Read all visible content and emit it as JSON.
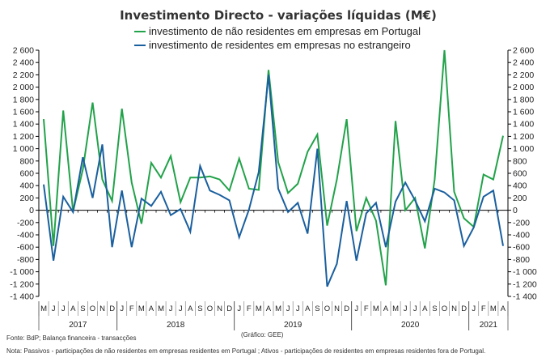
{
  "chart_data": {
    "type": "line",
    "title": "Investimento Directo - variações líquidas (M€)",
    "categories": [
      "M",
      "J",
      "J",
      "A",
      "S",
      "O",
      "N",
      "D",
      "J",
      "F",
      "M",
      "A",
      "M",
      "J",
      "J",
      "A",
      "S",
      "O",
      "N",
      "D",
      "J",
      "F",
      "M",
      "A",
      "M",
      "J",
      "J",
      "A",
      "S",
      "O",
      "N",
      "D",
      "J",
      "F",
      "M",
      "A",
      "M",
      "J",
      "J",
      "A",
      "S",
      "O",
      "N",
      "D",
      "J",
      "F",
      "M",
      "A"
    ],
    "years": [
      {
        "label": "2017",
        "start": 0,
        "end": 7
      },
      {
        "label": "2018",
        "start": 8,
        "end": 19
      },
      {
        "label": "2019",
        "start": 20,
        "end": 31
      },
      {
        "label": "2020",
        "start": 32,
        "end": 43
      },
      {
        "label": "2021",
        "start": 44,
        "end": 47
      }
    ],
    "series": [
      {
        "name": "investimento de não residentes em empresas em Portugal",
        "color": "#22a24a",
        "values": [
          1480,
          -580,
          1620,
          -20,
          660,
          1750,
          500,
          150,
          1650,
          450,
          -220,
          770,
          530,
          880,
          130,
          530,
          530,
          550,
          500,
          320,
          840,
          350,
          330,
          2280,
          780,
          280,
          430,
          950,
          1230,
          -250,
          500,
          1480,
          -340,
          200,
          -170,
          -1220,
          1450,
          0,
          200,
          -620,
          500,
          2600,
          300,
          -130,
          -270,
          580,
          500,
          1210
        ]
      },
      {
        "name": "investimento de residentes em empresas no estrangeiro",
        "color": "#1a5f9e",
        "values": [
          420,
          -820,
          220,
          -30,
          860,
          200,
          1070,
          -600,
          320,
          -600,
          190,
          70,
          300,
          -80,
          20,
          -350,
          720,
          320,
          250,
          160,
          -440,
          10,
          620,
          2200,
          350,
          -30,
          120,
          -380,
          1000,
          -1240,
          -870,
          150,
          -820,
          -50,
          120,
          -600,
          140,
          450,
          160,
          -180,
          350,
          290,
          160,
          -580,
          -280,
          220,
          320,
          -580
        ]
      }
    ],
    "y_axis": {
      "min": -1400,
      "max": 2600,
      "step": 200
    },
    "y_tick_labels": [
      "2 600",
      "2 400",
      "2 200",
      "2 000",
      "1 800",
      "1 600",
      "1 400",
      "1 200",
      "1 000",
      "800",
      "600",
      "400",
      "200",
      "0",
      "-200",
      "-400",
      "-600",
      "-800",
      "-1 000",
      "-1 200",
      "-1 400"
    ],
    "source": "Fonte: BdP; Balança financeira - transacções",
    "credit": "(Gráfico: GEE)",
    "note": "Nota: Passivos - participações de não residentes em empresas residentes em Portugal ; Ativos - participações de residentes em empresas residentes fora de Portugal."
  }
}
